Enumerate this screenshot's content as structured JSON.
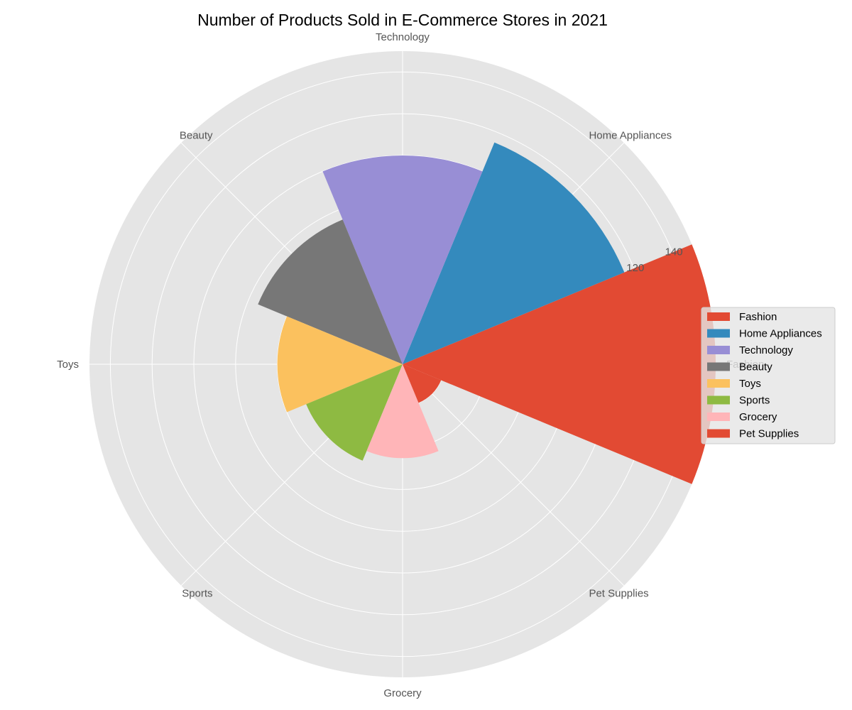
{
  "chart_data": {
    "type": "bar",
    "subtype": "polar-rose",
    "title": "Number of Products Sold in E-Commerce Stores in 2021",
    "categories": [
      "Fashion",
      "Home Appliances",
      "Technology",
      "Beauty",
      "Toys",
      "Sports",
      "Grocery",
      "Pet Supplies"
    ],
    "values": [
      150,
      115,
      100,
      75,
      60,
      50,
      45,
      20
    ],
    "colors": [
      "#E24A33",
      "#348ABD",
      "#988ED5",
      "#777777",
      "#FBC15E",
      "#8EBA42",
      "#FFB5B8",
      "#E24A33"
    ],
    "rlim": [
      0,
      150
    ],
    "rticks": [
      20,
      40,
      60,
      80,
      100,
      120,
      140
    ],
    "rtick_labels_visible": [
      "120",
      "140"
    ],
    "grid": true,
    "legend": {
      "placement": "right",
      "entries": [
        "Fashion",
        "Home Appliances",
        "Technology",
        "Beauty",
        "Toys",
        "Sports",
        "Grocery",
        "Pet Supplies"
      ]
    },
    "background_color": "#E5E5E5",
    "grid_color": "#FFFFFF"
  }
}
